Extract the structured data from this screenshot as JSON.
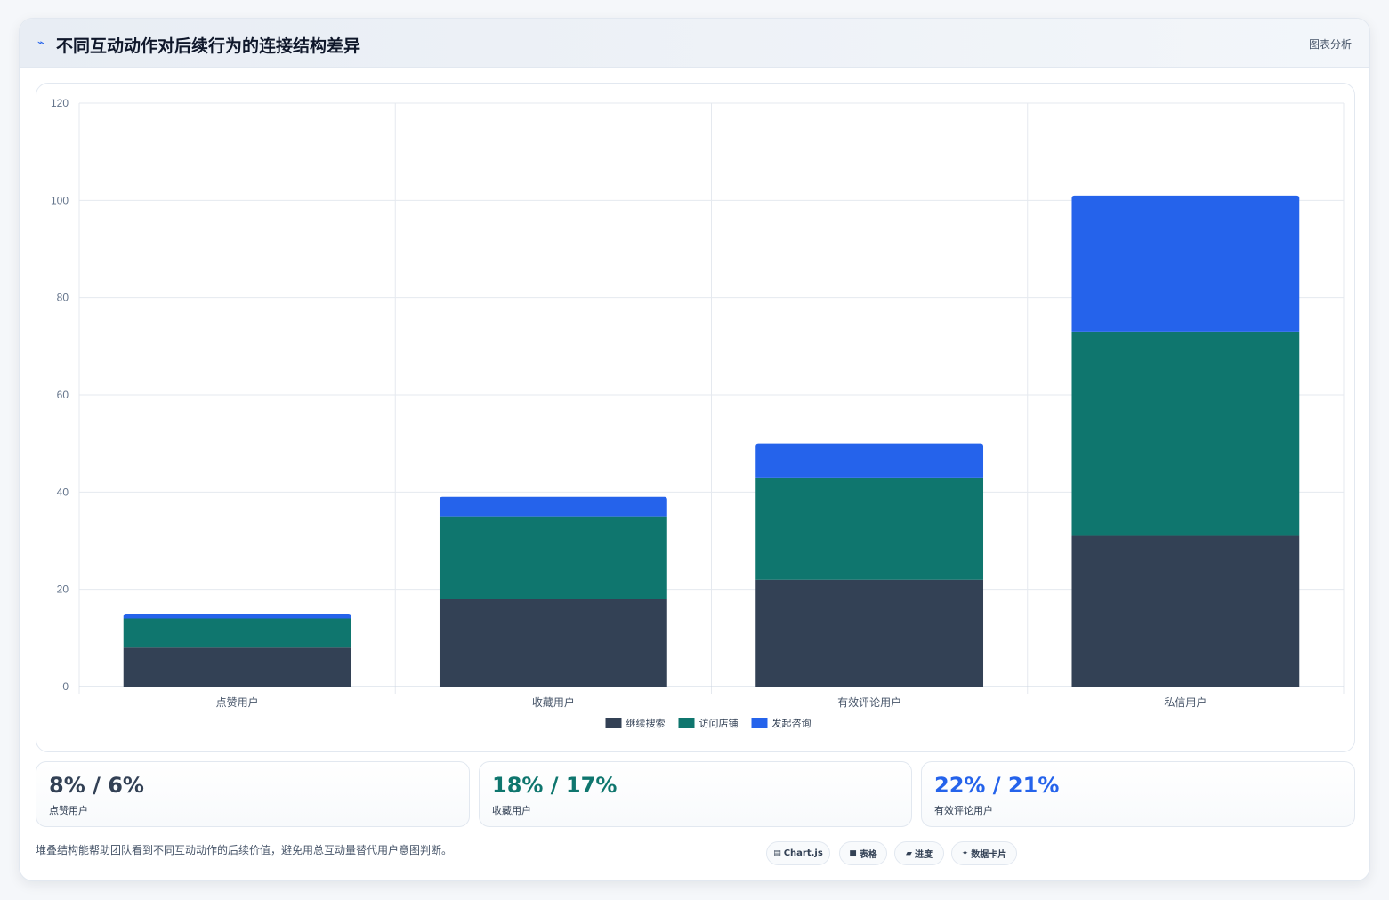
{
  "header": {
    "icon": "chart-line-icon",
    "title": "不同互动动作对后续行为的连接结构差异",
    "tag": "图表分析"
  },
  "chart_data": {
    "type": "bar",
    "stacked": true,
    "categories": [
      "点赞用户",
      "收藏用户",
      "有效评论用户",
      "私信用户"
    ],
    "series": [
      {
        "name": "继续搜索",
        "values": [
          8,
          18,
          22,
          31
        ],
        "color": "#334155"
      },
      {
        "name": "访问店铺",
        "values": [
          6,
          17,
          21,
          42
        ],
        "color": "#0f766e"
      },
      {
        "name": "发起咨询",
        "values": [
          1,
          4,
          7,
          28
        ],
        "color": "#2563eb"
      }
    ],
    "ylim": [
      0,
      120
    ],
    "yticks": [
      0,
      20,
      40,
      60,
      80,
      100,
      120
    ],
    "grid": true,
    "legend_position": "bottom"
  },
  "stats": [
    {
      "value": "8% / 6%",
      "label": "点赞用户",
      "color": "#334155"
    },
    {
      "value": "18% / 17%",
      "label": "收藏用户",
      "color": "#0f766e"
    },
    {
      "value": "22% / 21%",
      "label": "有效评论用户",
      "color": "#2563eb"
    }
  ],
  "footnote": "堆叠结构能帮助团队看到不同互动动作的后续价值，避免用总互动量替代用户意图判断。",
  "pills": [
    {
      "icon": "chart-icon",
      "glyph": "▤",
      "label": "Chart.js"
    },
    {
      "icon": "table-icon",
      "glyph": "■",
      "label": "表格"
    },
    {
      "icon": "progress-icon",
      "glyph": "▰",
      "label": "进度"
    },
    {
      "icon": "data-card-icon",
      "glyph": "✦",
      "label": "数据卡片"
    }
  ]
}
